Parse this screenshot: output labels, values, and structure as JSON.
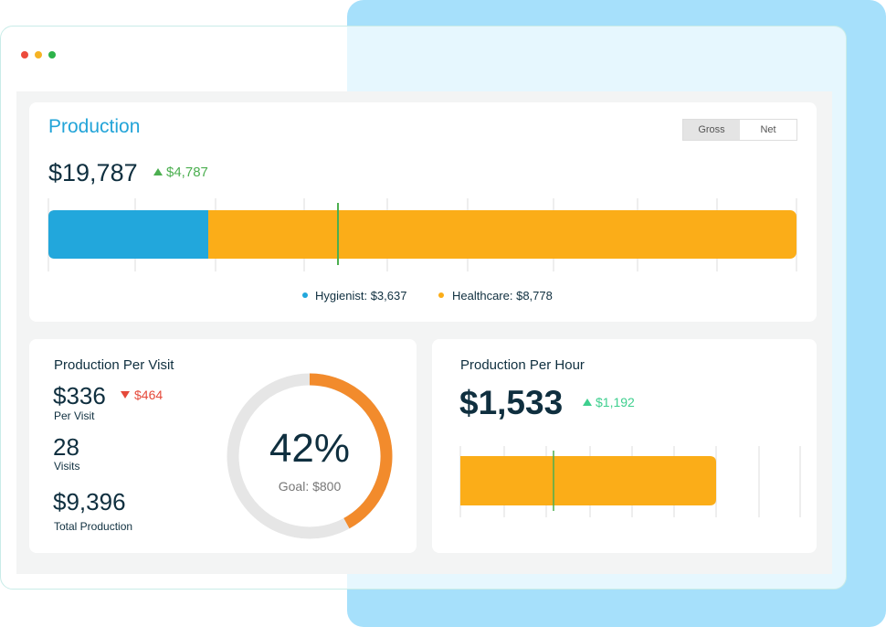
{
  "production": {
    "title": "Production",
    "toggle": [
      "Gross",
      "Net"
    ],
    "total": "$19,787",
    "change": "$4,787",
    "legend": [
      "Hygienist: $3,637",
      "Healthcare: $8,778"
    ]
  },
  "per_visit": {
    "title": "Production Per Visit",
    "stats": [
      {
        "value": "$336",
        "label": "Per Visit",
        "change": "$464"
      },
      {
        "value": "28",
        "label": "Visits"
      },
      {
        "value": "$9,396",
        "label": "Total Production"
      }
    ],
    "donut": {
      "value": 42,
      "label": "42%",
      "goal": "Goal: $800"
    }
  },
  "per_hour": {
    "title": "Production Per Hour",
    "value": "$1,533",
    "change": "$1,192"
  }
}
